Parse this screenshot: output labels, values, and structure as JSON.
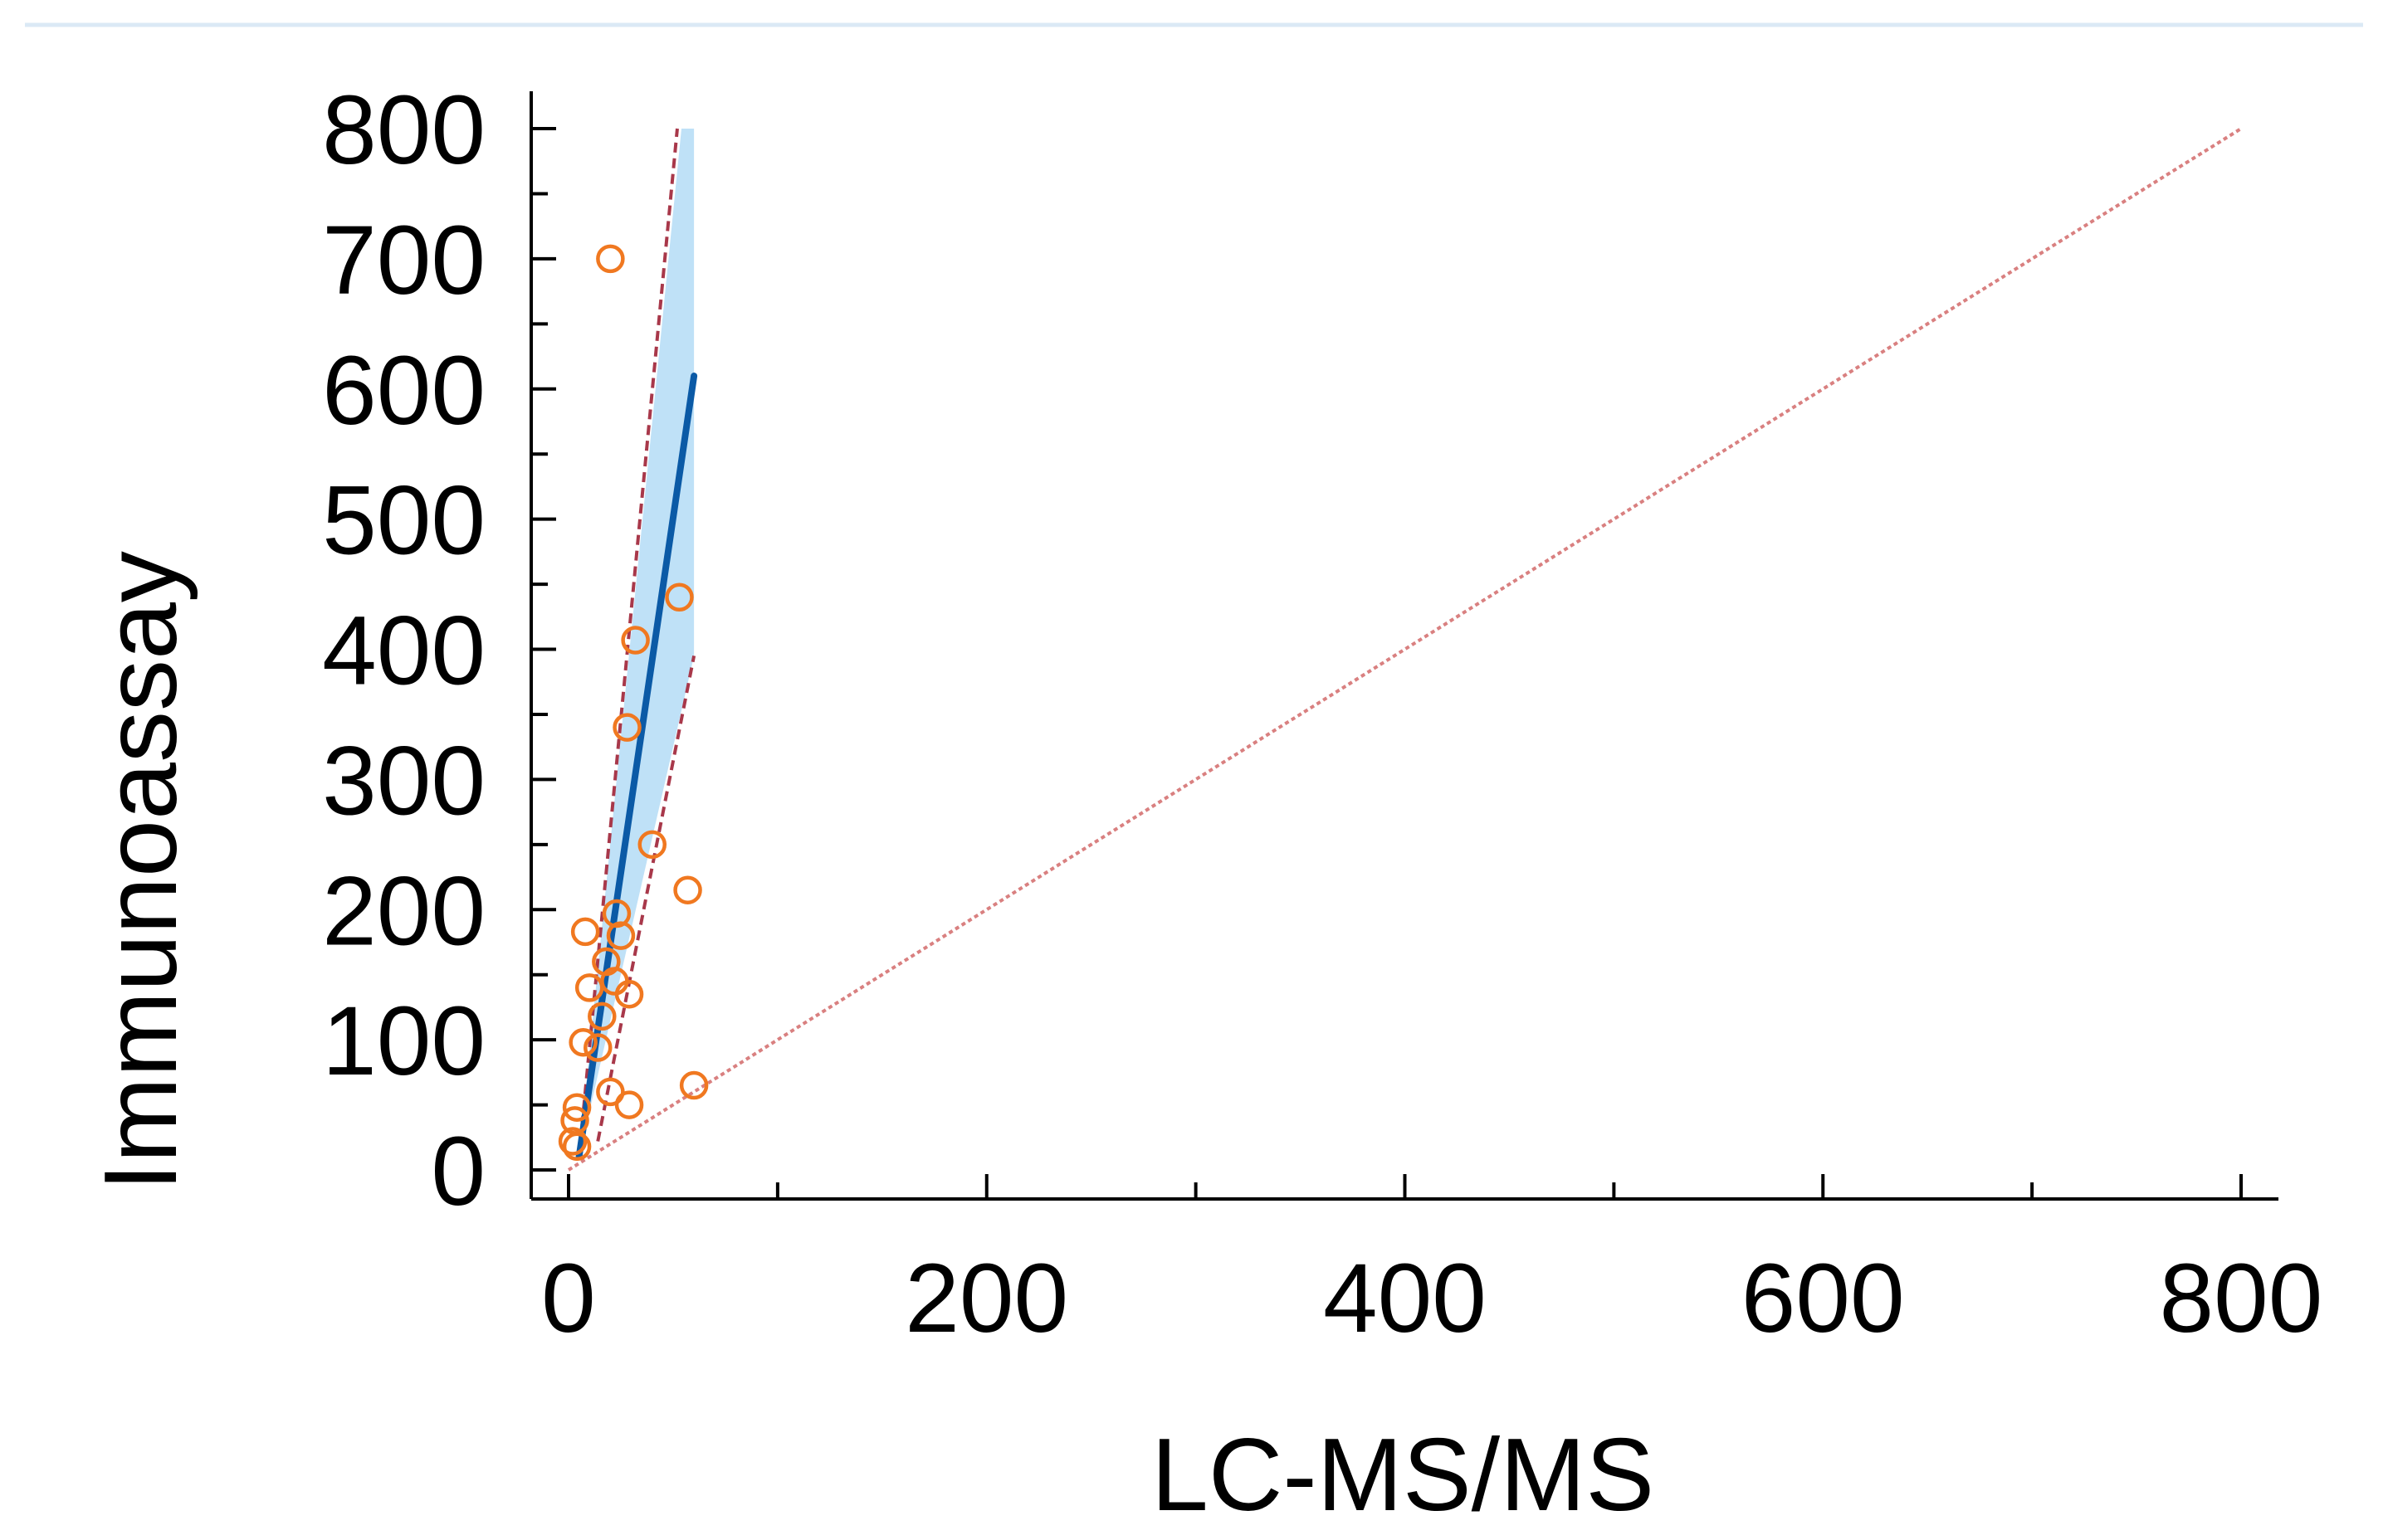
{
  "chart_data": {
    "type": "scatter",
    "title": "",
    "xlabel": "LC-MS/MS",
    "ylabel": "Immunoassay",
    "xlim": [
      0,
      800
    ],
    "ylim": [
      0,
      800
    ],
    "x_ticks": [
      0,
      200,
      400,
      600,
      800
    ],
    "x_minor_ticks": [
      100,
      300,
      500,
      700
    ],
    "y_ticks": [
      0,
      100,
      200,
      300,
      400,
      500,
      600,
      700,
      800
    ],
    "y_minor_ticks": [
      50,
      150,
      250,
      350,
      450,
      550,
      650,
      750
    ],
    "grid": false,
    "legend": "none",
    "points": [
      {
        "x": 20,
        "y": 700
      },
      {
        "x": 53,
        "y": 440
      },
      {
        "x": 32,
        "y": 407
      },
      {
        "x": 28,
        "y": 340
      },
      {
        "x": 40,
        "y": 250
      },
      {
        "x": 57,
        "y": 215
      },
      {
        "x": 23,
        "y": 197
      },
      {
        "x": 8,
        "y": 183
      },
      {
        "x": 25,
        "y": 180
      },
      {
        "x": 18,
        "y": 160
      },
      {
        "x": 10,
        "y": 140
      },
      {
        "x": 22,
        "y": 145
      },
      {
        "x": 29,
        "y": 135
      },
      {
        "x": 16,
        "y": 118
      },
      {
        "x": 7,
        "y": 98
      },
      {
        "x": 14,
        "y": 94
      },
      {
        "x": 60,
        "y": 65
      },
      {
        "x": 20,
        "y": 60
      },
      {
        "x": 29,
        "y": 50
      },
      {
        "x": 4,
        "y": 48
      },
      {
        "x": 3,
        "y": 38
      },
      {
        "x": 2,
        "y": 22
      },
      {
        "x": 4,
        "y": 18
      }
    ],
    "regression_line": {
      "x1": 5,
      "y1": 10,
      "x2": 60,
      "y2": 610
    },
    "confidence_band": [
      [
        60,
        800
      ],
      [
        54,
        800
      ],
      [
        5,
        10
      ],
      [
        60,
        395
      ]
    ],
    "confidence_bounds": [
      {
        "x1": 5,
        "y1": 10,
        "x2": 52,
        "y2": 800
      },
      {
        "x1": 14,
        "y1": 22,
        "x2": 60,
        "y2": 395
      }
    ],
    "identity_line": {
      "x1": 0,
      "y1": 0,
      "x2": 800,
      "y2": 800
    },
    "colors": {
      "points": "#f07820",
      "regression": "#0b5aa6",
      "band": "#bfe1f7",
      "bounds": "#a8384a",
      "identity": "#d98080",
      "axes": "#000000",
      "header_rule": "#dbe9f5"
    }
  }
}
